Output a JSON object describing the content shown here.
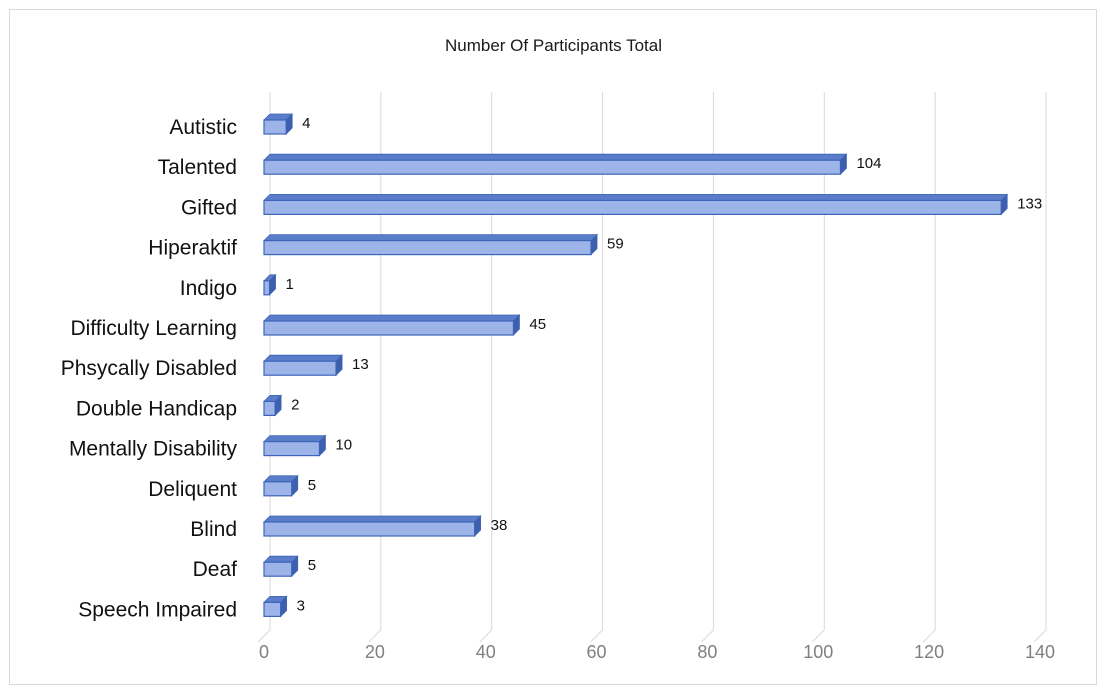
{
  "chart_data": {
    "type": "bar",
    "orientation": "horizontal",
    "style": "3d-clustered-bar",
    "title": "Number Of Participants Total",
    "categories": [
      "Autistic",
      "Talented",
      "Gifted",
      "Hiperaktif",
      "Indigo",
      "Difficulty Learning",
      "Phsycally Disabled",
      "Double Handicap",
      "Mentally Disability",
      "Deliquent",
      "Blind",
      "Deaf",
      "Speech Impaired"
    ],
    "values": [
      4,
      104,
      133,
      59,
      1,
      45,
      13,
      2,
      10,
      5,
      38,
      5,
      3
    ],
    "data_labels": [
      "4",
      "104",
      "133",
      "59",
      "1",
      "45",
      "13",
      "2",
      "10",
      "5",
      "38",
      "5",
      "3"
    ],
    "xlim": [
      0,
      140
    ],
    "xticks": [
      0,
      20,
      40,
      60,
      80,
      100,
      120,
      140
    ],
    "xtick_labels": [
      "0",
      "20",
      "40",
      "60",
      "80",
      "100",
      "120",
      "140"
    ],
    "grid": "vertical",
    "legend": "none",
    "colors": {
      "bar_front": "#9db4e8",
      "bar_top": "#5a7dc9",
      "bar_side": "#3d5fae",
      "bar_edge": "#3e64b8",
      "grid": "#d9d9d9",
      "tick_text": "#7f7f7f"
    }
  }
}
